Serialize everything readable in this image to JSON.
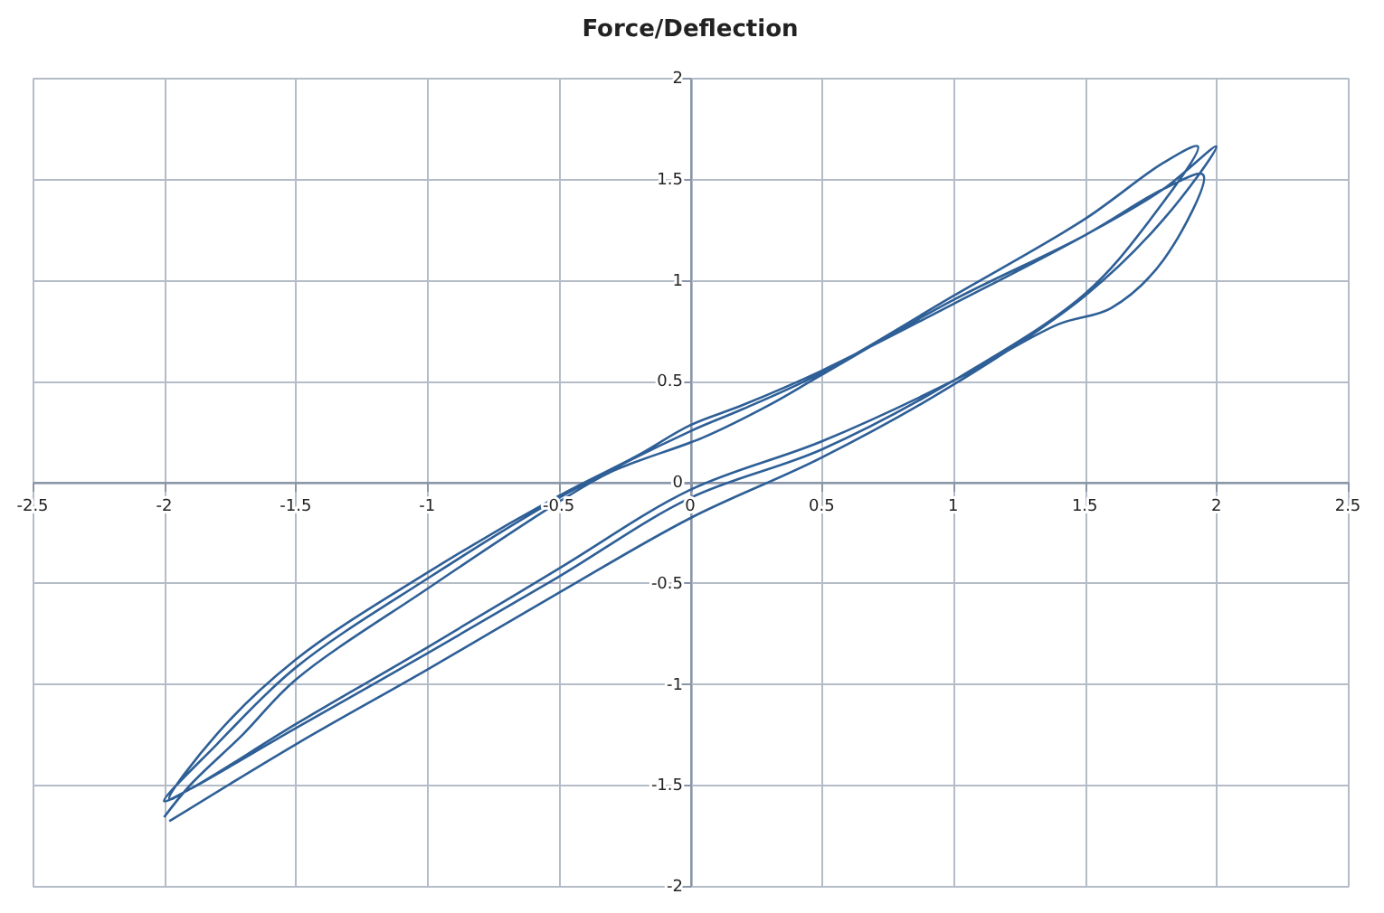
{
  "chart_data": {
    "type": "line",
    "title": "Force/Deflection",
    "xlim": [
      -2.5,
      2.5
    ],
    "ylim": [
      -2,
      2
    ],
    "xticks": [
      -2.5,
      -2,
      -1.5,
      -1,
      -0.5,
      0,
      0.5,
      1,
      1.5,
      2,
      2.5
    ],
    "yticks": [
      -2,
      -1.5,
      -1,
      -0.5,
      0,
      0.5,
      1,
      1.5,
      2
    ],
    "grid": true,
    "series": [
      {
        "color": "#2e5f96",
        "x": [
          -1.98,
          -1.5,
          -1,
          -0.5,
          0,
          0.5,
          1,
          1.5,
          1.8,
          2.0,
          1.8,
          1.5,
          1.0,
          0.5,
          0.2,
          0,
          -0.2,
          -0.5,
          -1.0,
          -1.5,
          -1.8,
          -1.98,
          -1.9,
          -1.5,
          -1,
          -0.5,
          0,
          0.5,
          1,
          1.5,
          1.75,
          1.93,
          1.8,
          1.5,
          1,
          0.5,
          0.2,
          0,
          -0.5,
          -1,
          -1.5,
          -1.8,
          -2.0,
          -1.9,
          -1.5,
          -1,
          -0.5,
          0,
          0.5,
          1,
          1.4,
          1.6,
          1.8,
          1.95,
          1.8,
          1.5,
          1,
          0.5,
          0.3,
          0.05,
          -0.3,
          -0.5,
          -1,
          -1.5,
          -1.7,
          -1.9,
          -2.0
        ],
        "values": [
          -1.68,
          -1.3,
          -0.93,
          -0.55,
          -0.18,
          0.12,
          0.48,
          0.92,
          1.3,
          1.66,
          1.45,
          1.22,
          0.88,
          0.55,
          0.38,
          0.28,
          0.13,
          -0.07,
          -0.45,
          -0.88,
          -1.25,
          -1.57,
          -1.52,
          -1.22,
          -0.85,
          -0.47,
          -0.08,
          0.16,
          0.5,
          0.93,
          1.3,
          1.66,
          1.58,
          1.3,
          0.92,
          0.54,
          0.36,
          0.25,
          -0.08,
          -0.48,
          -0.92,
          -1.3,
          -1.58,
          -1.52,
          -1.2,
          -0.82,
          -0.43,
          -0.04,
          0.2,
          0.5,
          0.78,
          0.86,
          1.1,
          1.52,
          1.45,
          1.22,
          0.9,
          0.53,
          0.38,
          0.22,
          0.05,
          -0.1,
          -0.53,
          -0.98,
          -1.25,
          -1.5,
          -1.66
        ]
      }
    ]
  }
}
